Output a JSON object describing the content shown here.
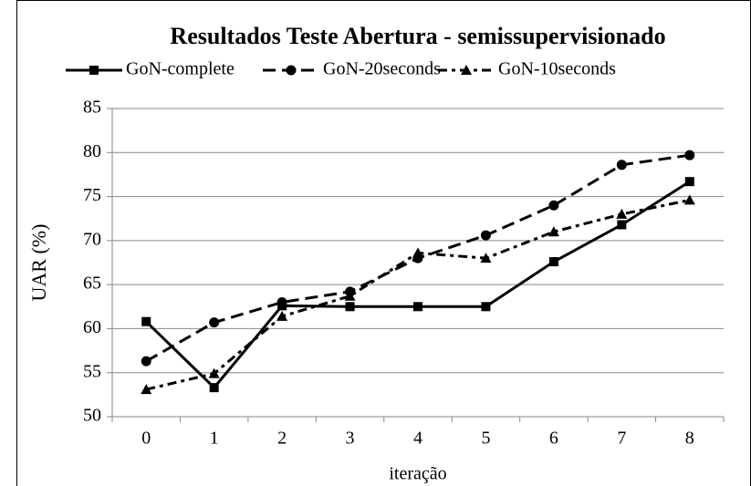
{
  "chart_data": {
    "type": "line",
    "title": "Resultados Teste Abertura - semissupervisionado",
    "xlabel": "iteração",
    "ylabel": "UAR (%)",
    "categories": [
      "0",
      "1",
      "2",
      "3",
      "4",
      "5",
      "6",
      "7",
      "8"
    ],
    "series": [
      {
        "name": "GoN-complete",
        "color": "#000000",
        "dash": "solid",
        "marker": "square",
        "values": [
          60.8,
          53.3,
          62.6,
          62.5,
          62.5,
          62.5,
          67.6,
          71.8,
          76.7
        ]
      },
      {
        "name": "GoN-20seconds",
        "color": "#000000",
        "dash": "dashed",
        "marker": "circle",
        "values": [
          56.3,
          60.7,
          63.0,
          64.2,
          68.0,
          70.6,
          74.0,
          78.6,
          79.7
        ]
      },
      {
        "name": "GoN-10seconds",
        "color": "#000000",
        "dash": "dashdot",
        "marker": "triangle",
        "values": [
          53.1,
          54.9,
          61.4,
          63.7,
          68.6,
          68.0,
          71.0,
          73.0,
          74.6
        ]
      }
    ],
    "ylim": [
      50,
      85
    ],
    "yticks": [
      50,
      55,
      60,
      65,
      70,
      75,
      80,
      85
    ],
    "grid": true,
    "legend": "top"
  }
}
